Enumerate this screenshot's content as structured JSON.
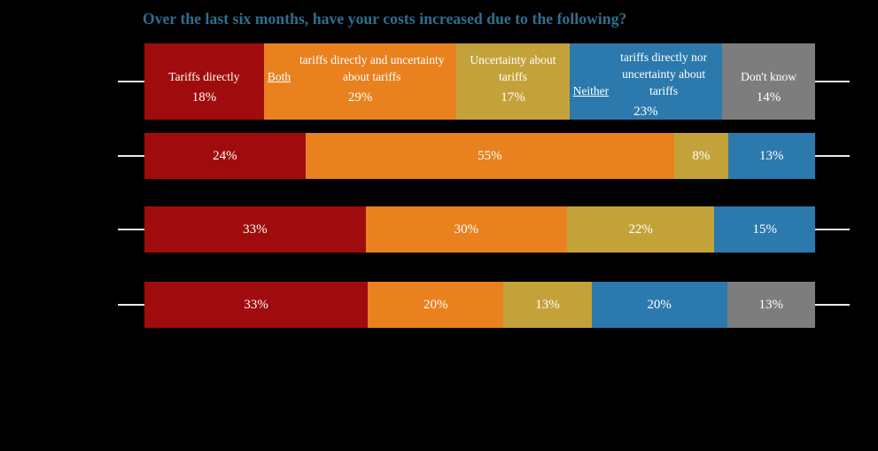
{
  "page": {
    "background": "#000000",
    "text_color": "#FFFFFF"
  },
  "chart_data": {
    "type": "bar",
    "stacked": true,
    "orientation": "horizontal",
    "title": "Over the last six months, have your costs increased due to the following?",
    "title_color": "#2E6F91",
    "unit": "%",
    "xlim": [
      0,
      100
    ],
    "grid": false,
    "legend_position": "inside-first-bar",
    "axis_tick_color": "#EAEAEA",
    "legend": [
      {
        "key": "tariffs-directly",
        "label": "Tariffs directly",
        "underlined_prefix": "",
        "color": "#A00C0D"
      },
      {
        "key": "both-tariffs-and-uncertainty",
        "label": "Both tariffs directly and uncertainty about tariffs",
        "underlined_prefix": "Both",
        "color": "#E8811E"
      },
      {
        "key": "uncertainty-about-tariffs",
        "label": "Uncertainty about tariffs",
        "underlined_prefix": "",
        "color": "#C4A23A"
      },
      {
        "key": "neither-tariffs-nor-uncertainty",
        "label": "Neither tariffs directly nor uncertainty about tariffs",
        "underlined_prefix": "Neither",
        "color": "#2B79AD"
      },
      {
        "key": "dont-know",
        "label": "Don't know",
        "underlined_prefix": "",
        "color": "#7D7D7D"
      }
    ],
    "rows": [
      {
        "show_category_labels": true,
        "segments": [
          {
            "legend_index": 0,
            "value": 18,
            "value_label": "18%"
          },
          {
            "legend_index": 1,
            "value": 29,
            "value_label": "29%"
          },
          {
            "legend_index": 2,
            "value": 17,
            "value_label": "17%"
          },
          {
            "legend_index": 3,
            "value": 23,
            "value_label": "23%"
          },
          {
            "legend_index": 4,
            "value": 14,
            "value_label": "14%"
          }
        ]
      },
      {
        "show_category_labels": false,
        "segments": [
          {
            "legend_index": 0,
            "value": 24,
            "value_label": "24%"
          },
          {
            "legend_index": 1,
            "value": 55,
            "value_label": "55%"
          },
          {
            "legend_index": 2,
            "value": 8,
            "value_label": "8%"
          },
          {
            "legend_index": 3,
            "value": 13,
            "value_label": "13%"
          }
        ]
      },
      {
        "show_category_labels": false,
        "segments": [
          {
            "legend_index": 0,
            "value": 33,
            "value_label": "33%"
          },
          {
            "legend_index": 1,
            "value": 30,
            "value_label": "30%"
          },
          {
            "legend_index": 2,
            "value": 22,
            "value_label": "22%"
          },
          {
            "legend_index": 3,
            "value": 15,
            "value_label": "15%"
          }
        ]
      },
      {
        "show_category_labels": false,
        "segments": [
          {
            "legend_index": 0,
            "value": 33,
            "value_label": "33%"
          },
          {
            "legend_index": 1,
            "value": 20,
            "value_label": "20%"
          },
          {
            "legend_index": 2,
            "value": 13,
            "value_label": "13%"
          },
          {
            "legend_index": 3,
            "value": 20,
            "value_label": "20%"
          },
          {
            "legend_index": 4,
            "value": 13,
            "value_label": "13%"
          }
        ]
      }
    ]
  }
}
